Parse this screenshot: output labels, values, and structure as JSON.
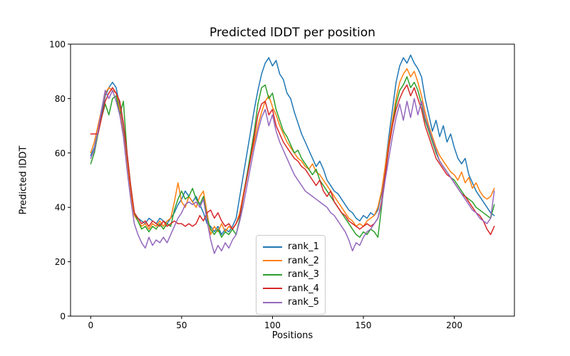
{
  "chart_data": {
    "type": "line",
    "title": "Predicted lDDT per position",
    "xlabel": "Positions",
    "ylabel": "Predicted lDDT",
    "xlim": [
      -11.1,
      233.1
    ],
    "ylim": [
      0,
      100
    ],
    "x_ticks": [
      0,
      50,
      100,
      150,
      200
    ],
    "y_ticks": [
      0,
      20,
      40,
      60,
      80,
      100
    ],
    "grid": false,
    "legend_position": "lower center",
    "x": [
      0,
      2,
      4,
      6,
      8,
      10,
      12,
      14,
      16,
      18,
      20,
      22,
      24,
      26,
      28,
      30,
      32,
      34,
      36,
      38,
      40,
      42,
      44,
      46,
      48,
      50,
      52,
      54,
      56,
      58,
      60,
      62,
      64,
      66,
      68,
      70,
      72,
      74,
      76,
      78,
      80,
      82,
      84,
      86,
      88,
      90,
      92,
      94,
      96,
      98,
      100,
      102,
      104,
      106,
      108,
      110,
      112,
      114,
      116,
      118,
      120,
      122,
      124,
      126,
      128,
      130,
      132,
      134,
      136,
      138,
      140,
      142,
      144,
      146,
      148,
      150,
      152,
      154,
      156,
      158,
      160,
      162,
      164,
      166,
      168,
      170,
      172,
      174,
      176,
      178,
      180,
      182,
      184,
      186,
      188,
      190,
      192,
      194,
      196,
      198,
      200,
      202,
      204,
      206,
      208,
      210,
      212,
      214,
      216,
      218,
      220,
      222
    ],
    "series": [
      {
        "name": "rank_1",
        "color": "#1f77b4",
        "values": [
          59,
          62,
          68,
          74,
          81,
          84,
          86,
          84,
          77,
          68,
          57,
          46,
          38,
          36,
          35,
          34,
          36,
          35,
          34,
          36,
          35,
          34,
          36,
          38,
          41,
          43,
          46,
          44,
          42,
          44,
          41,
          38,
          34,
          33,
          31,
          33,
          30,
          32,
          31,
          33,
          36,
          44,
          52,
          60,
          68,
          76,
          83,
          89,
          93,
          95,
          92,
          94,
          89,
          87,
          82,
          80,
          75,
          71,
          67,
          64,
          61,
          58,
          55,
          57,
          54,
          50,
          48,
          46,
          45,
          43,
          41,
          39,
          38,
          36,
          35,
          37,
          36,
          38,
          37,
          39,
          45,
          55,
          66,
          76,
          86,
          92,
          95,
          93,
          96,
          93,
          91,
          88,
          80,
          74,
          68,
          72,
          66,
          70,
          64,
          67,
          62,
          58,
          56,
          58,
          52,
          49,
          46,
          44,
          42,
          40,
          38,
          37
        ]
      },
      {
        "name": "rank_2",
        "color": "#ff7f0e",
        "values": [
          60,
          64,
          70,
          76,
          82,
          84,
          83,
          82,
          76,
          67,
          56,
          45,
          37,
          35,
          33,
          34,
          32,
          34,
          33,
          35,
          33,
          35,
          36,
          42,
          49,
          42,
          40,
          44,
          42,
          40,
          44,
          46,
          38,
          30,
          33,
          31,
          34,
          31,
          33,
          32,
          34,
          38,
          45,
          52,
          58,
          64,
          70,
          75,
          79,
          81,
          77,
          74,
          70,
          67,
          64,
          62,
          60,
          58,
          57,
          55,
          54,
          56,
          53,
          52,
          50,
          48,
          46,
          44,
          42,
          40,
          38,
          36,
          35,
          33,
          34,
          33,
          35,
          36,
          37,
          40,
          46,
          55,
          64,
          72,
          80,
          86,
          89,
          91,
          88,
          90,
          86,
          81,
          75,
          70,
          66,
          62,
          59,
          57,
          55,
          53,
          52,
          50,
          53,
          49,
          51,
          47,
          49,
          46,
          44,
          43,
          44,
          47
        ]
      },
      {
        "name": "rank_3",
        "color": "#2ca02c",
        "values": [
          56,
          60,
          67,
          73,
          78,
          74,
          80,
          81,
          74,
          79,
          60,
          48,
          38,
          35,
          32,
          33,
          31,
          33,
          32,
          34,
          32,
          34,
          33,
          39,
          43,
          46,
          43,
          44,
          47,
          43,
          41,
          44,
          36,
          32,
          30,
          32,
          29,
          31,
          30,
          32,
          30,
          36,
          44,
          52,
          60,
          68,
          78,
          84,
          85,
          80,
          82,
          76,
          72,
          68,
          66,
          63,
          60,
          61,
          58,
          56,
          54,
          52,
          54,
          50,
          48,
          46,
          44,
          42,
          40,
          38,
          36,
          34,
          32,
          30,
          29,
          31,
          30,
          32,
          31,
          29,
          40,
          52,
          62,
          70,
          78,
          83,
          85,
          88,
          84,
          86,
          83,
          78,
          72,
          68,
          64,
          60,
          57,
          55,
          53,
          51,
          50,
          48,
          46,
          44,
          43,
          42,
          40,
          39,
          38,
          37,
          36,
          41
        ]
      },
      {
        "name": "rank_4",
        "color": "#d62728",
        "values": [
          67,
          67,
          67,
          73,
          79,
          82,
          84,
          82,
          79,
          71,
          60,
          48,
          38,
          36,
          34,
          35,
          33,
          35,
          34,
          33,
          35,
          33,
          34,
          35,
          34,
          34,
          33,
          34,
          33,
          34,
          37,
          35,
          38,
          39,
          36,
          38,
          35,
          33,
          34,
          32,
          34,
          37,
          44,
          51,
          58,
          66,
          74,
          78,
          79,
          74,
          76,
          70,
          67,
          64,
          62,
          60,
          58,
          57,
          55,
          54,
          52,
          50,
          48,
          50,
          46,
          44,
          46,
          42,
          40,
          38,
          37,
          35,
          34,
          33,
          32,
          33,
          34,
          33,
          34,
          36,
          42,
          52,
          62,
          70,
          76,
          80,
          83,
          85,
          81,
          84,
          80,
          76,
          70,
          66,
          62,
          58,
          56,
          54,
          52,
          51,
          49,
          47,
          45,
          44,
          42,
          40,
          38,
          37,
          35,
          32,
          30,
          33
        ]
      },
      {
        "name": "rank_5",
        "color": "#9467bd",
        "values": [
          58,
          61,
          68,
          76,
          83,
          80,
          83,
          79,
          74,
          66,
          54,
          43,
          34,
          30,
          27,
          25,
          29,
          26,
          28,
          27,
          29,
          27,
          30,
          33,
          36,
          38,
          41,
          42,
          41,
          42,
          40,
          43,
          35,
          28,
          23,
          26,
          24,
          27,
          25,
          28,
          30,
          35,
          41,
          48,
          55,
          62,
          68,
          73,
          76,
          70,
          74,
          68,
          64,
          61,
          58,
          55,
          52,
          50,
          48,
          46,
          45,
          44,
          43,
          42,
          41,
          40,
          38,
          37,
          35,
          33,
          31,
          28,
          24,
          27,
          26,
          29,
          31,
          32,
          34,
          36,
          41,
          50,
          58,
          66,
          73,
          78,
          72,
          79,
          73,
          80,
          74,
          79,
          73,
          69,
          65,
          61,
          57,
          55,
          53,
          51,
          49,
          47,
          45,
          43,
          41,
          39,
          38,
          36,
          35,
          34,
          36,
          46
        ]
      }
    ]
  }
}
